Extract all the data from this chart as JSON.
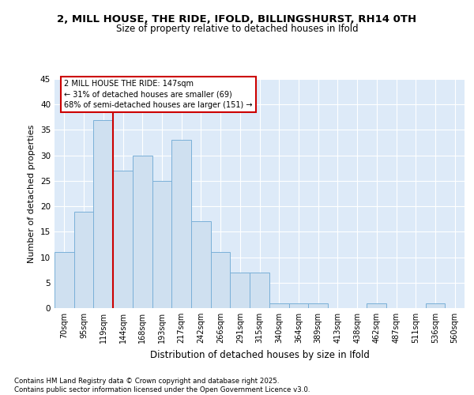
{
  "title_line1": "2, MILL HOUSE, THE RIDE, IFOLD, BILLINGSHURST, RH14 0TH",
  "title_line2": "Size of property relative to detached houses in Ifold",
  "xlabel": "Distribution of detached houses by size in Ifold",
  "ylabel": "Number of detached properties",
  "categories": [
    "70sqm",
    "95sqm",
    "119sqm",
    "144sqm",
    "168sqm",
    "193sqm",
    "217sqm",
    "242sqm",
    "266sqm",
    "291sqm",
    "315sqm",
    "340sqm",
    "364sqm",
    "389sqm",
    "413sqm",
    "438sqm",
    "462sqm",
    "487sqm",
    "511sqm",
    "536sqm",
    "560sqm"
  ],
  "values": [
    11,
    19,
    37,
    27,
    30,
    25,
    33,
    17,
    11,
    7,
    7,
    1,
    1,
    1,
    0,
    0,
    1,
    0,
    0,
    1,
    0
  ],
  "bar_color": "#cfe0f0",
  "bar_edge_color": "#7ab0d8",
  "marker_line_color": "#cc0000",
  "annotation_text": "2 MILL HOUSE THE RIDE: 147sqm\n← 31% of detached houses are smaller (69)\n68% of semi-detached houses are larger (151) →",
  "annotation_box_color": "#ffffff",
  "annotation_box_edge": "#cc0000",
  "ylim": [
    0,
    45
  ],
  "yticks": [
    0,
    5,
    10,
    15,
    20,
    25,
    30,
    35,
    40,
    45
  ],
  "background_color": "#ddeaf8",
  "grid_color": "#ffffff",
  "footer_text": "Contains HM Land Registry data © Crown copyright and database right 2025.\nContains public sector information licensed under the Open Government Licence v3.0.",
  "title_fontsize": 9.5,
  "subtitle_fontsize": 8.5,
  "bar_width": 1.0,
  "marker_line_index": 3
}
